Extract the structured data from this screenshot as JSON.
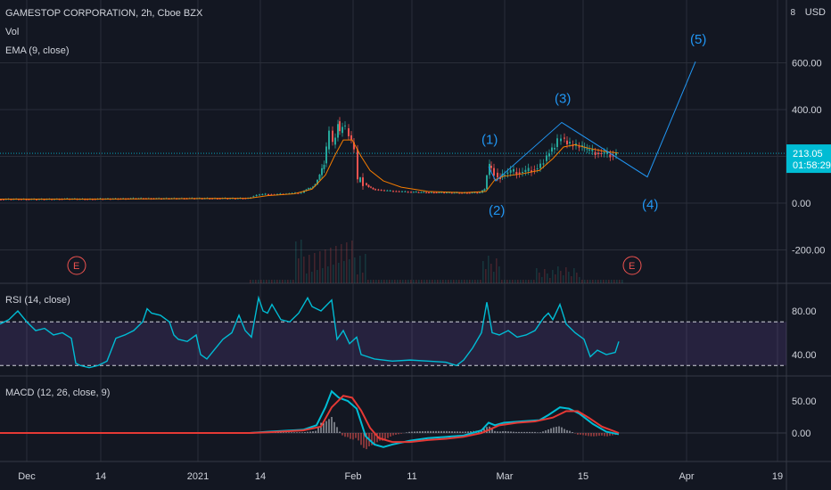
{
  "header": {
    "symbol_title": "GAMESTOP CORPORATION, 2h, Cboe BZX",
    "vol_label": "Vol",
    "ema_label": "EMA (9, close)",
    "currency": "USD",
    "currency_badge": "8"
  },
  "price_badge": {
    "value": "213.05",
    "countdown": "01:58:29"
  },
  "rsi_label": "RSI (14, close)",
  "macd_label": "MACD (12, 26, close, 9)",
  "earnings_marker": "E",
  "colors": {
    "background": "#131722",
    "grid": "#2a2e39",
    "candle_up": "#26a69a",
    "candle_down": "#ef5350",
    "ema": "#f57c00",
    "wave": "#2196f3",
    "rsi": "#00bcd4",
    "rsi_band": "#7e57c2",
    "macd": "#00bcd4",
    "signal": "#e53935",
    "price_badge": "#00bcd4"
  },
  "chart_data": [
    {
      "type": "candlestick",
      "title": "GAMESTOP CORPORATION, 2h, Cboe BZX",
      "ylabel": "USD",
      "ylim": [
        -300,
        780
      ],
      "y_ticks": [
        -200,
        0,
        200,
        400,
        600
      ],
      "y_tick_labels": [
        "-200.00",
        "0.00",
        "",
        "400.00",
        "600.00"
      ],
      "x_labels": [
        "Dec",
        "14",
        "2021",
        "14",
        "Feb",
        "11",
        "Mar",
        "15",
        "Apr",
        "19"
      ],
      "close_series": [
        [
          0,
          16
        ],
        [
          20,
          17
        ],
        [
          40,
          16
        ],
        [
          60,
          17
        ],
        [
          80,
          18
        ],
        [
          100,
          17
        ],
        [
          120,
          18
        ],
        [
          140,
          19
        ],
        [
          160,
          20
        ],
        [
          180,
          19
        ],
        [
          200,
          20
        ],
        [
          220,
          20
        ],
        [
          240,
          20
        ],
        [
          260,
          20
        ],
        [
          280,
          21
        ],
        [
          290,
          35
        ],
        [
          300,
          38
        ],
        [
          310,
          36
        ],
        [
          320,
          40
        ],
        [
          330,
          42
        ],
        [
          340,
          45
        ],
        [
          345,
          60
        ],
        [
          350,
          65
        ],
        [
          355,
          80
        ],
        [
          360,
          120
        ],
        [
          365,
          170
        ],
        [
          368,
          230
        ],
        [
          372,
          310
        ],
        [
          375,
          250
        ],
        [
          378,
          280
        ],
        [
          380,
          350
        ],
        [
          383,
          300
        ],
        [
          386,
          330
        ],
        [
          390,
          320
        ],
        [
          393,
          290
        ],
        [
          396,
          260
        ],
        [
          400,
          230
        ],
        [
          403,
          90
        ],
        [
          406,
          110
        ],
        [
          410,
          85
        ],
        [
          415,
          70
        ],
        [
          420,
          60
        ],
        [
          430,
          55
        ],
        [
          440,
          52
        ],
        [
          450,
          50
        ],
        [
          460,
          48
        ],
        [
          480,
          46
        ],
        [
          500,
          45
        ],
        [
          520,
          44
        ],
        [
          540,
          45
        ],
        [
          545,
          60
        ],
        [
          548,
          120
        ],
        [
          550,
          160
        ],
        [
          553,
          150
        ],
        [
          557,
          130
        ],
        [
          560,
          110
        ],
        [
          565,
          120
        ],
        [
          575,
          135
        ],
        [
          585,
          130
        ],
        [
          595,
          140
        ],
        [
          605,
          150
        ],
        [
          612,
          180
        ],
        [
          618,
          220
        ],
        [
          624,
          240
        ],
        [
          628,
          265
        ],
        [
          632,
          280
        ],
        [
          638,
          255
        ],
        [
          645,
          245
        ],
        [
          652,
          240
        ],
        [
          660,
          225
        ],
        [
          670,
          215
        ],
        [
          680,
          210
        ],
        [
          690,
          205
        ],
        [
          694,
          213
        ]
      ],
      "ema_series": [
        [
          0,
          17
        ],
        [
          100,
          17
        ],
        [
          200,
          19
        ],
        [
          280,
          21
        ],
        [
          300,
          32
        ],
        [
          330,
          40
        ],
        [
          350,
          60
        ],
        [
          365,
          120
        ],
        [
          375,
          200
        ],
        [
          385,
          270
        ],
        [
          395,
          270
        ],
        [
          405,
          200
        ],
        [
          415,
          140
        ],
        [
          430,
          95
        ],
        [
          450,
          68
        ],
        [
          480,
          50
        ],
        [
          520,
          45
        ],
        [
          545,
          50
        ],
        [
          555,
          100
        ],
        [
          565,
          115
        ],
        [
          585,
          125
        ],
        [
          605,
          140
        ],
        [
          620,
          190
        ],
        [
          632,
          240
        ],
        [
          645,
          250
        ],
        [
          660,
          235
        ],
        [
          680,
          220
        ],
        [
          694,
          214
        ]
      ],
      "current_price": 213.05,
      "elliott_wave": {
        "points": [
          [
            548,
            155
          ],
          [
            556,
            95
          ],
          [
            630,
            345
          ],
          [
            726,
            112
          ],
          [
            780,
            605
          ]
        ],
        "labels": [
          "(1)",
          "(2)",
          "(3)",
          "(4)",
          "(5)"
        ]
      }
    },
    {
      "type": "line",
      "title": "RSI (14, close)",
      "ylim": [
        20,
        95
      ],
      "y_tick_labels": [
        "80.00",
        "40.00"
      ],
      "bands": [
        70,
        30
      ],
      "series": [
        [
          0,
          68
        ],
        [
          10,
          72
        ],
        [
          20,
          80
        ],
        [
          30,
          70
        ],
        [
          40,
          62
        ],
        [
          50,
          64
        ],
        [
          60,
          58
        ],
        [
          70,
          60
        ],
        [
          80,
          55
        ],
        [
          85,
          32
        ],
        [
          90,
          30
        ],
        [
          100,
          28
        ],
        [
          110,
          30
        ],
        [
          120,
          34
        ],
        [
          130,
          55
        ],
        [
          140,
          58
        ],
        [
          150,
          62
        ],
        [
          160,
          70
        ],
        [
          165,
          82
        ],
        [
          170,
          78
        ],
        [
          180,
          76
        ],
        [
          190,
          70
        ],
        [
          195,
          58
        ],
        [
          200,
          54
        ],
        [
          210,
          52
        ],
        [
          220,
          58
        ],
        [
          225,
          40
        ],
        [
          232,
          36
        ],
        [
          240,
          44
        ],
        [
          250,
          54
        ],
        [
          260,
          60
        ],
        [
          268,
          76
        ],
        [
          275,
          62
        ],
        [
          282,
          56
        ],
        [
          290,
          92
        ],
        [
          295,
          80
        ],
        [
          300,
          78
        ],
        [
          305,
          86
        ],
        [
          315,
          72
        ],
        [
          325,
          70
        ],
        [
          335,
          78
        ],
        [
          345,
          92
        ],
        [
          350,
          84
        ],
        [
          360,
          80
        ],
        [
          372,
          90
        ],
        [
          378,
          54
        ],
        [
          385,
          62
        ],
        [
          392,
          50
        ],
        [
          400,
          56
        ],
        [
          405,
          40
        ],
        [
          420,
          36
        ],
        [
          440,
          34
        ],
        [
          460,
          35
        ],
        [
          480,
          34
        ],
        [
          500,
          33
        ],
        [
          512,
          30
        ],
        [
          520,
          35
        ],
        [
          530,
          46
        ],
        [
          540,
          60
        ],
        [
          546,
          88
        ],
        [
          552,
          60
        ],
        [
          560,
          58
        ],
        [
          570,
          62
        ],
        [
          580,
          56
        ],
        [
          590,
          58
        ],
        [
          600,
          62
        ],
        [
          610,
          74
        ],
        [
          615,
          78
        ],
        [
          620,
          72
        ],
        [
          628,
          86
        ],
        [
          635,
          68
        ],
        [
          645,
          60
        ],
        [
          655,
          54
        ],
        [
          662,
          38
        ],
        [
          670,
          44
        ],
        [
          680,
          40
        ],
        [
          690,
          42
        ],
        [
          694,
          52
        ]
      ]
    },
    {
      "type": "line",
      "title": "MACD (12, 26, close, 9)",
      "ylim": [
        -25,
        70
      ],
      "y_tick_labels": [
        "50.00",
        "0.00"
      ],
      "series": [
        {
          "name": "",
          "values": [
            [
              0,
              0
            ],
            [
              280,
              0
            ],
            [
              300,
              2
            ],
            [
              340,
              5
            ],
            [
              355,
              12
            ],
            [
              365,
              40
            ],
            [
              372,
              65
            ],
            [
              380,
              55
            ],
            [
              390,
              50
            ],
            [
              400,
              38
            ],
            [
              410,
              -5
            ],
            [
              420,
              -18
            ],
            [
              430,
              -22
            ],
            [
              440,
              -18
            ],
            [
              460,
              -12
            ],
            [
              480,
              -8
            ],
            [
              500,
              -6
            ],
            [
              520,
              -4
            ],
            [
              540,
              4
            ],
            [
              548,
              16
            ],
            [
              555,
              12
            ],
            [
              565,
              16
            ],
            [
              585,
              18
            ],
            [
              605,
              20
            ],
            [
              615,
              28
            ],
            [
              628,
              40
            ],
            [
              638,
              38
            ],
            [
              650,
              30
            ],
            [
              665,
              14
            ],
            [
              680,
              2
            ],
            [
              694,
              -2
            ]
          ]
        },
        {
          "name": "",
          "values": [
            [
              0,
              0
            ],
            [
              280,
              0
            ],
            [
              300,
              1
            ],
            [
              340,
              4
            ],
            [
              360,
              10
            ],
            [
              372,
              40
            ],
            [
              385,
              58
            ],
            [
              395,
              55
            ],
            [
              405,
              35
            ],
            [
              415,
              8
            ],
            [
              425,
              -8
            ],
            [
              440,
              -14
            ],
            [
              460,
              -14
            ],
            [
              480,
              -11
            ],
            [
              500,
              -9
            ],
            [
              520,
              -6
            ],
            [
              540,
              0
            ],
            [
              550,
              6
            ],
            [
              560,
              12
            ],
            [
              580,
              16
            ],
            [
              600,
              18
            ],
            [
              620,
              24
            ],
            [
              635,
              34
            ],
            [
              648,
              34
            ],
            [
              660,
              24
            ],
            [
              675,
              10
            ],
            [
              694,
              0
            ]
          ]
        }
      ]
    }
  ]
}
